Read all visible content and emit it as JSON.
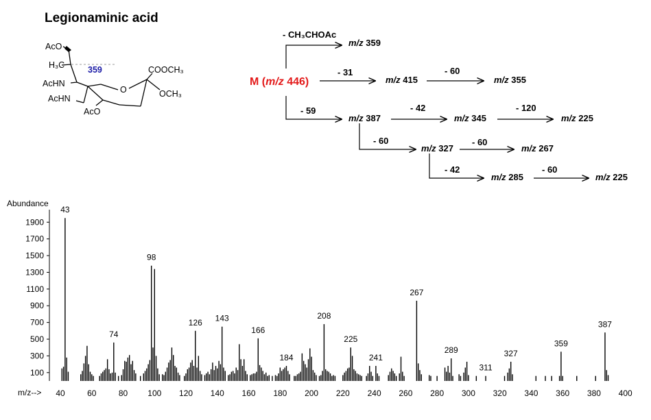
{
  "title": "Legionaminic acid",
  "structure": {
    "labels": {
      "aco_top": "AcO",
      "h3c": "H₃C",
      "cleavage": "359",
      "cooch3": "COOCH₃",
      "o_ring": "O",
      "och3": "OCH₃",
      "achn_upper": "AcHN",
      "achn_lower": "AcHN",
      "aco_bottom": "AcO"
    },
    "cleavage_color": "#1a1aa6"
  },
  "scheme": {
    "molecular_ion": "M (m/z 446)",
    "molecular_ion_prefix": "M (",
    "molecular_ion_mz": "m/z",
    "molecular_ion_value": " 446)",
    "molecular_ion_color": "#e31a1a",
    "mz_prefix": "m/z",
    "fragments": {
      "f359": "359",
      "f415": "415",
      "f355": "355",
      "f387": "387",
      "f345": "345",
      "f225a": "225",
      "f327": "327",
      "f267": "267",
      "f285": "285",
      "f225b": "225"
    },
    "losses": {
      "l_ch3choac": "- CH₃CHOAc",
      "l31": "- 31",
      "l60a": "- 60",
      "l59": "- 59",
      "l42a": "- 42",
      "l120": "- 120",
      "l60b": "- 60",
      "l60c": "- 60",
      "l42b": "- 42",
      "l60d": "- 60"
    }
  },
  "chart_data": {
    "type": "bar",
    "ylabel": "Abundance",
    "xlabel": "m/z-->",
    "xlim": [
      33,
      408
    ],
    "ylim": [
      0,
      2050
    ],
    "xticks": [
      40,
      60,
      80,
      100,
      120,
      140,
      160,
      180,
      200,
      220,
      240,
      260,
      280,
      300,
      320,
      340,
      360,
      380,
      400
    ],
    "yticks": [
      100,
      300,
      500,
      700,
      900,
      1100,
      1300,
      1500,
      1700,
      1900
    ],
    "labeled_peaks": [
      {
        "mz": 43,
        "abundance": 1950,
        "label": "43"
      },
      {
        "mz": 74,
        "abundance": 460,
        "label": "74"
      },
      {
        "mz": 98,
        "abundance": 1380,
        "label": "98"
      },
      {
        "mz": 126,
        "abundance": 600,
        "label": "126"
      },
      {
        "mz": 143,
        "abundance": 650,
        "label": "143"
      },
      {
        "mz": 166,
        "abundance": 510,
        "label": "166"
      },
      {
        "mz": 184,
        "abundance": 180,
        "label": "184"
      },
      {
        "mz": 208,
        "abundance": 680,
        "label": "208"
      },
      {
        "mz": 225,
        "abundance": 400,
        "label": "225"
      },
      {
        "mz": 241,
        "abundance": 180,
        "label": "241"
      },
      {
        "mz": 267,
        "abundance": 960,
        "label": "267"
      },
      {
        "mz": 289,
        "abundance": 270,
        "label": "289"
      },
      {
        "mz": 311,
        "abundance": 60,
        "label": "311"
      },
      {
        "mz": 327,
        "abundance": 230,
        "label": "327"
      },
      {
        "mz": 359,
        "abundance": 350,
        "label": "359"
      },
      {
        "mz": 387,
        "abundance": 580,
        "label": "387"
      }
    ],
    "peaks": [
      [
        41,
        150
      ],
      [
        42,
        170
      ],
      [
        43,
        1950
      ],
      [
        44,
        280
      ],
      [
        45,
        110
      ],
      [
        53,
        80
      ],
      [
        54,
        120
      ],
      [
        55,
        210
      ],
      [
        56,
        300
      ],
      [
        57,
        420
      ],
      [
        58,
        200
      ],
      [
        59,
        110
      ],
      [
        60,
        80
      ],
      [
        61,
        60
      ],
      [
        65,
        60
      ],
      [
        66,
        90
      ],
      [
        67,
        110
      ],
      [
        68,
        130
      ],
      [
        69,
        150
      ],
      [
        70,
        260
      ],
      [
        71,
        140
      ],
      [
        72,
        90
      ],
      [
        73,
        100
      ],
      [
        74,
        460
      ],
      [
        75,
        100
      ],
      [
        77,
        60
      ],
      [
        79,
        70
      ],
      [
        80,
        140
      ],
      [
        81,
        240
      ],
      [
        82,
        230
      ],
      [
        83,
        280
      ],
      [
        84,
        310
      ],
      [
        85,
        200
      ],
      [
        86,
        240
      ],
      [
        87,
        130
      ],
      [
        88,
        90
      ],
      [
        91,
        60
      ],
      [
        93,
        90
      ],
      [
        94,
        120
      ],
      [
        95,
        150
      ],
      [
        96,
        200
      ],
      [
        97,
        250
      ],
      [
        98,
        1380
      ],
      [
        99,
        400
      ],
      [
        100,
        1340
      ],
      [
        101,
        300
      ],
      [
        102,
        150
      ],
      [
        103,
        80
      ],
      [
        105,
        80
      ],
      [
        106,
        70
      ],
      [
        107,
        110
      ],
      [
        108,
        160
      ],
      [
        109,
        220
      ],
      [
        110,
        250
      ],
      [
        111,
        400
      ],
      [
        112,
        310
      ],
      [
        113,
        180
      ],
      [
        114,
        160
      ],
      [
        115,
        100
      ],
      [
        116,
        70
      ],
      [
        119,
        60
      ],
      [
        120,
        90
      ],
      [
        121,
        140
      ],
      [
        122,
        160
      ],
      [
        123,
        220
      ],
      [
        124,
        250
      ],
      [
        125,
        180
      ],
      [
        126,
        600
      ],
      [
        127,
        160
      ],
      [
        128,
        300
      ],
      [
        129,
        120
      ],
      [
        130,
        80
      ],
      [
        132,
        70
      ],
      [
        133,
        90
      ],
      [
        134,
        110
      ],
      [
        135,
        80
      ],
      [
        136,
        140
      ],
      [
        137,
        220
      ],
      [
        138,
        130
      ],
      [
        139,
        180
      ],
      [
        140,
        150
      ],
      [
        141,
        240
      ],
      [
        142,
        200
      ],
      [
        143,
        650
      ],
      [
        144,
        160
      ],
      [
        145,
        120
      ],
      [
        147,
        70
      ],
      [
        148,
        80
      ],
      [
        149,
        110
      ],
      [
        150,
        120
      ],
      [
        151,
        90
      ],
      [
        152,
        160
      ],
      [
        153,
        130
      ],
      [
        154,
        440
      ],
      [
        155,
        260
      ],
      [
        156,
        180
      ],
      [
        157,
        260
      ],
      [
        158,
        120
      ],
      [
        159,
        80
      ],
      [
        161,
        70
      ],
      [
        162,
        80
      ],
      [
        163,
        90
      ],
      [
        164,
        90
      ],
      [
        165,
        110
      ],
      [
        166,
        510
      ],
      [
        167,
        190
      ],
      [
        168,
        160
      ],
      [
        169,
        120
      ],
      [
        170,
        80
      ],
      [
        171,
        100
      ],
      [
        172,
        60
      ],
      [
        173,
        70
      ],
      [
        175,
        60
      ],
      [
        177,
        70
      ],
      [
        178,
        60
      ],
      [
        179,
        90
      ],
      [
        180,
        160
      ],
      [
        181,
        120
      ],
      [
        182,
        140
      ],
      [
        183,
        160
      ],
      [
        184,
        180
      ],
      [
        185,
        120
      ],
      [
        186,
        80
      ],
      [
        189,
        60
      ],
      [
        190,
        60
      ],
      [
        191,
        80
      ],
      [
        192,
        90
      ],
      [
        193,
        110
      ],
      [
        194,
        330
      ],
      [
        195,
        240
      ],
      [
        196,
        200
      ],
      [
        197,
        160
      ],
      [
        198,
        260
      ],
      [
        199,
        390
      ],
      [
        200,
        290
      ],
      [
        201,
        130
      ],
      [
        202,
        100
      ],
      [
        203,
        70
      ],
      [
        205,
        60
      ],
      [
        206,
        70
      ],
      [
        207,
        120
      ],
      [
        208,
        680
      ],
      [
        209,
        140
      ],
      [
        210,
        120
      ],
      [
        211,
        110
      ],
      [
        212,
        90
      ],
      [
        213,
        60
      ],
      [
        214,
        70
      ],
      [
        215,
        60
      ],
      [
        220,
        70
      ],
      [
        221,
        100
      ],
      [
        222,
        120
      ],
      [
        223,
        150
      ],
      [
        224,
        160
      ],
      [
        225,
        400
      ],
      [
        226,
        300
      ],
      [
        227,
        140
      ],
      [
        228,
        120
      ],
      [
        229,
        90
      ],
      [
        230,
        80
      ],
      [
        231,
        70
      ],
      [
        232,
        60
      ],
      [
        235,
        60
      ],
      [
        236,
        90
      ],
      [
        237,
        180
      ],
      [
        238,
        110
      ],
      [
        239,
        60
      ],
      [
        241,
        180
      ],
      [
        242,
        90
      ],
      [
        243,
        60
      ],
      [
        249,
        70
      ],
      [
        250,
        110
      ],
      [
        251,
        150
      ],
      [
        252,
        120
      ],
      [
        253,
        90
      ],
      [
        254,
        60
      ],
      [
        256,
        90
      ],
      [
        257,
        290
      ],
      [
        258,
        110
      ],
      [
        259,
        60
      ],
      [
        267,
        960
      ],
      [
        268,
        210
      ],
      [
        269,
        130
      ],
      [
        270,
        80
      ],
      [
        275,
        70
      ],
      [
        276,
        60
      ],
      [
        280,
        60
      ],
      [
        285,
        160
      ],
      [
        286,
        110
      ],
      [
        287,
        180
      ],
      [
        288,
        100
      ],
      [
        289,
        270
      ],
      [
        290,
        60
      ],
      [
        294,
        80
      ],
      [
        295,
        60
      ],
      [
        297,
        100
      ],
      [
        298,
        160
      ],
      [
        299,
        230
      ],
      [
        300,
        70
      ],
      [
        305,
        60
      ],
      [
        311,
        60
      ],
      [
        323,
        60
      ],
      [
        325,
        100
      ],
      [
        326,
        150
      ],
      [
        327,
        230
      ],
      [
        328,
        80
      ],
      [
        343,
        60
      ],
      [
        349,
        60
      ],
      [
        353,
        60
      ],
      [
        358,
        60
      ],
      [
        359,
        350
      ],
      [
        360,
        60
      ],
      [
        369,
        60
      ],
      [
        381,
        60
      ],
      [
        387,
        580
      ],
      [
        388,
        130
      ],
      [
        389,
        70
      ]
    ]
  }
}
